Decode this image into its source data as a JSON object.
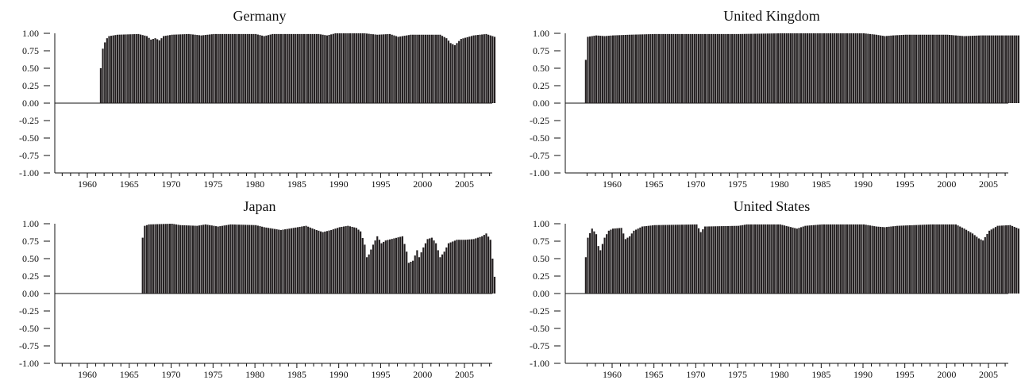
{
  "figure": {
    "bar_color": "#231f20",
    "axis_color": "#111111"
  },
  "chart_data": [
    {
      "type": "bar",
      "title": "Germany",
      "xlim": [
        1953,
        2010
      ],
      "ylim": [
        -1.0,
        1.0
      ],
      "yticks": [
        -1.0,
        -0.75,
        -0.5,
        -0.25,
        0.0,
        0.25,
        0.5,
        0.75,
        1.0
      ],
      "ytick_labels": [
        "-1.00",
        "-0.75",
        "-0.50",
        "-0.25",
        "0.00",
        "0.25",
        "0.50",
        "0.75",
        "1.00"
      ],
      "xtick_labels": [
        "1960",
        "1965",
        "1970",
        "1975",
        "1980",
        "1985",
        "1990",
        "1995",
        "2000",
        "2005"
      ],
      "x_start": 1961.5,
      "step": 0.25,
      "knots": [
        [
          1961.5,
          0.5
        ],
        [
          1961.75,
          0.78
        ],
        [
          1962.0,
          0.87
        ],
        [
          1962.25,
          0.93
        ],
        [
          1962.5,
          0.96
        ],
        [
          1963.5,
          0.98
        ],
        [
          1966.0,
          0.99
        ],
        [
          1967.0,
          0.96
        ],
        [
          1967.5,
          0.91
        ],
        [
          1968.0,
          0.93
        ],
        [
          1968.5,
          0.9
        ],
        [
          1969.0,
          0.96
        ],
        [
          1970.0,
          0.98
        ],
        [
          1972.0,
          0.99
        ],
        [
          1973.5,
          0.97
        ],
        [
          1975.0,
          0.99
        ],
        [
          1980.0,
          0.99
        ],
        [
          1981.0,
          0.96
        ],
        [
          1982.0,
          0.99
        ],
        [
          1987.5,
          0.99
        ],
        [
          1988.5,
          0.97
        ],
        [
          1989.5,
          1.0
        ],
        [
          1993.0,
          1.0
        ],
        [
          1994.5,
          0.98
        ],
        [
          1996.0,
          0.99
        ],
        [
          1997.0,
          0.95
        ],
        [
          1998.5,
          0.98
        ],
        [
          2002.0,
          0.98
        ],
        [
          2002.75,
          0.93
        ],
        [
          2003.25,
          0.86
        ],
        [
          2003.75,
          0.83
        ],
        [
          2004.5,
          0.92
        ],
        [
          2006.0,
          0.97
        ],
        [
          2007.5,
          0.99
        ],
        [
          2008.5,
          0.95
        ]
      ]
    },
    {
      "type": "bar",
      "title": "United Kingdom",
      "xlim": [
        1953,
        2010
      ],
      "ylim": [
        -1.0,
        1.0
      ],
      "yticks": [
        -1.0,
        -0.75,
        -0.5,
        -0.25,
        0.0,
        0.25,
        0.5,
        0.75,
        1.0
      ],
      "ytick_labels": [
        "-1.00",
        "-0.75",
        "-0.50",
        "-0.25",
        "0.00",
        "0.25",
        "0.50",
        "0.75",
        "1.00"
      ],
      "xtick_labels": [
        "1960",
        "1965",
        "1970",
        "1975",
        "1980",
        "1985",
        "1990",
        "1995",
        "2000",
        "2005"
      ],
      "x_start": 1956.75,
      "step": 0.25,
      "knots": [
        [
          1956.75,
          0.62
        ],
        [
          1957.0,
          0.95
        ],
        [
          1958.0,
          0.97
        ],
        [
          1959.0,
          0.96
        ],
        [
          1960.0,
          0.97
        ],
        [
          1962.0,
          0.98
        ],
        [
          1965.0,
          0.99
        ],
        [
          1975.0,
          0.99
        ],
        [
          1980.0,
          1.0
        ],
        [
          1990.0,
          1.0
        ],
        [
          1991.5,
          0.98
        ],
        [
          1992.5,
          0.96
        ],
        [
          1993.5,
          0.97
        ],
        [
          1995.0,
          0.98
        ],
        [
          2000.0,
          0.98
        ],
        [
          2001.0,
          0.97
        ],
        [
          2002.0,
          0.96
        ],
        [
          2004.0,
          0.97
        ],
        [
          2008.5,
          0.97
        ]
      ]
    },
    {
      "type": "bar",
      "title": "Japan",
      "xlim": [
        1953,
        2010
      ],
      "ylim": [
        -1.0,
        1.0
      ],
      "yticks": [
        -1.0,
        -0.75,
        -0.5,
        -0.25,
        0.0,
        0.25,
        0.5,
        0.75,
        1.0
      ],
      "ytick_labels": [
        "-1.00",
        "-0.75",
        "-0.50",
        "-0.25",
        "0.00",
        "0.25",
        "0.50",
        "0.75",
        "1.00"
      ],
      "xtick_labels": [
        "1960",
        "1965",
        "1970",
        "1975",
        "1980",
        "1985",
        "1990",
        "1995",
        "2000",
        "2005"
      ],
      "x_start": 1966.5,
      "step": 0.25,
      "knots": [
        [
          1966.5,
          0.8
        ],
        [
          1966.75,
          0.97
        ],
        [
          1967.25,
          0.99
        ],
        [
          1970.0,
          1.0
        ],
        [
          1971.0,
          0.98
        ],
        [
          1973.0,
          0.97
        ],
        [
          1974.0,
          0.99
        ],
        [
          1975.5,
          0.96
        ],
        [
          1977.0,
          0.99
        ],
        [
          1980.0,
          0.98
        ],
        [
          1981.0,
          0.95
        ],
        [
          1983.0,
          0.91
        ],
        [
          1985.0,
          0.95
        ],
        [
          1986.0,
          0.97
        ],
        [
          1987.0,
          0.92
        ],
        [
          1988.0,
          0.88
        ],
        [
          1989.0,
          0.91
        ],
        [
          1990.0,
          0.95
        ],
        [
          1991.0,
          0.97
        ],
        [
          1992.0,
          0.94
        ],
        [
          1992.5,
          0.89
        ],
        [
          1993.0,
          0.7
        ],
        [
          1993.25,
          0.52
        ],
        [
          1993.5,
          0.56
        ],
        [
          1994.0,
          0.7
        ],
        [
          1994.5,
          0.82
        ],
        [
          1995.0,
          0.72
        ],
        [
          1995.5,
          0.76
        ],
        [
          1996.5,
          0.79
        ],
        [
          1997.5,
          0.82
        ],
        [
          1998.0,
          0.6
        ],
        [
          1998.25,
          0.44
        ],
        [
          1998.75,
          0.47
        ],
        [
          1999.25,
          0.62
        ],
        [
          1999.5,
          0.52
        ],
        [
          2000.0,
          0.66
        ],
        [
          2000.5,
          0.78
        ],
        [
          2001.0,
          0.8
        ],
        [
          2001.5,
          0.72
        ],
        [
          2002.0,
          0.52
        ],
        [
          2002.5,
          0.6
        ],
        [
          2003.0,
          0.72
        ],
        [
          2004.0,
          0.77
        ],
        [
          2005.0,
          0.77
        ],
        [
          2006.0,
          0.78
        ],
        [
          2007.0,
          0.82
        ],
        [
          2007.5,
          0.86
        ],
        [
          2008.0,
          0.77
        ],
        [
          2008.25,
          0.5
        ],
        [
          2008.5,
          0.24
        ]
      ]
    },
    {
      "type": "bar",
      "title": "United States",
      "xlim": [
        1953,
        2010
      ],
      "ylim": [
        -1.0,
        1.0
      ],
      "yticks": [
        -1.0,
        -0.75,
        -0.5,
        -0.25,
        0.0,
        0.25,
        0.5,
        0.75,
        1.0
      ],
      "ytick_labels": [
        "-1.00",
        "-0.75",
        "-0.50",
        "-0.25",
        "0.00",
        "0.25",
        "0.50",
        "0.75",
        "1.00"
      ],
      "xtick_labels": [
        "1960",
        "1965",
        "1970",
        "1975",
        "1980",
        "1985",
        "1990",
        "1995",
        "2000",
        "2005"
      ],
      "x_start": 1956.75,
      "step": 0.25,
      "knots": [
        [
          1956.75,
          0.52
        ],
        [
          1957.0,
          0.8
        ],
        [
          1957.5,
          0.93
        ],
        [
          1958.0,
          0.85
        ],
        [
          1958.25,
          0.68
        ],
        [
          1958.5,
          0.62
        ],
        [
          1959.0,
          0.8
        ],
        [
          1959.5,
          0.9
        ],
        [
          1960.0,
          0.93
        ],
        [
          1961.0,
          0.94
        ],
        [
          1961.5,
          0.78
        ],
        [
          1962.0,
          0.82
        ],
        [
          1962.5,
          0.9
        ],
        [
          1963.5,
          0.96
        ],
        [
          1965.0,
          0.98
        ],
        [
          1970.0,
          0.99
        ],
        [
          1970.5,
          0.88
        ],
        [
          1971.0,
          0.96
        ],
        [
          1975.0,
          0.97
        ],
        [
          1976.0,
          0.99
        ],
        [
          1980.0,
          0.99
        ],
        [
          1982.0,
          0.93
        ],
        [
          1983.0,
          0.97
        ],
        [
          1985.0,
          0.99
        ],
        [
          1990.0,
          0.99
        ],
        [
          1991.5,
          0.96
        ],
        [
          1992.5,
          0.95
        ],
        [
          1994.0,
          0.97
        ],
        [
          1998.0,
          0.99
        ],
        [
          2001.0,
          0.99
        ],
        [
          2002.0,
          0.93
        ],
        [
          2003.0,
          0.86
        ],
        [
          2003.75,
          0.79
        ],
        [
          2004.25,
          0.76
        ],
        [
          2005.0,
          0.9
        ],
        [
          2006.0,
          0.97
        ],
        [
          2007.5,
          0.98
        ],
        [
          2008.5,
          0.93
        ]
      ]
    }
  ]
}
